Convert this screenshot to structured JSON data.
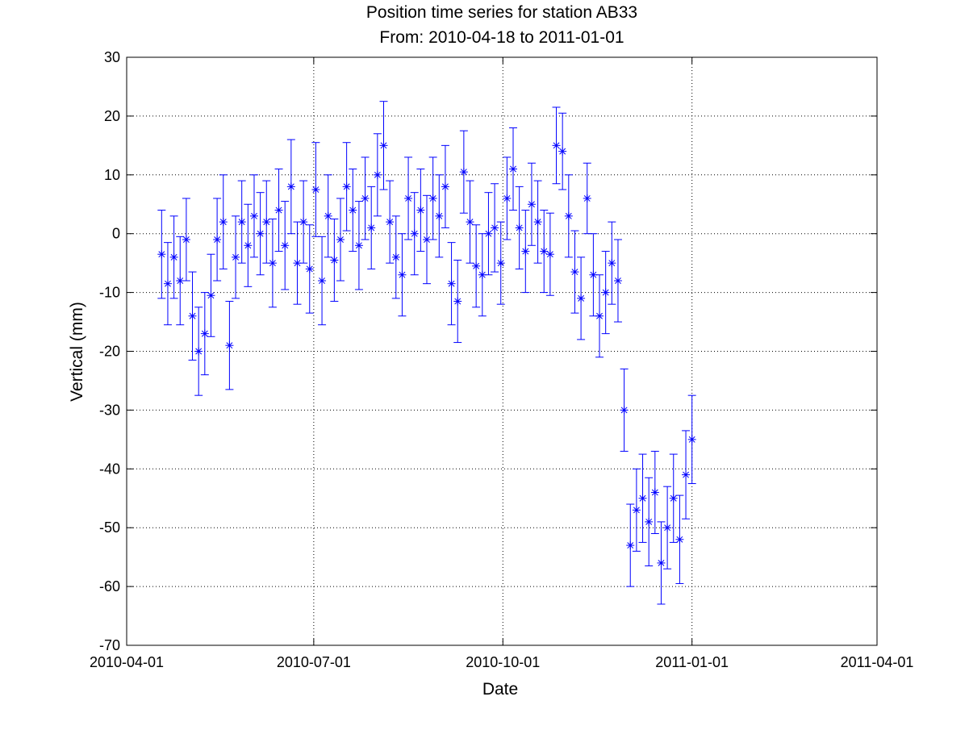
{
  "chart_data": {
    "type": "errorbar",
    "title": "Position time series for station AB33",
    "subtitle": "From: 2010-04-18 to 2011-01-01",
    "x_label": "Date",
    "y_label": "Vertical (mm)",
    "x": [
      "2010-04-18",
      "2010-04-21",
      "2010-04-24",
      "2010-04-27",
      "2010-04-30",
      "2010-05-03",
      "2010-05-06",
      "2010-05-09",
      "2010-05-12",
      "2010-05-15",
      "2010-05-18",
      "2010-05-21",
      "2010-05-24",
      "2010-05-27",
      "2010-05-30",
      "2010-06-02",
      "2010-06-05",
      "2010-06-08",
      "2010-06-11",
      "2010-06-14",
      "2010-06-17",
      "2010-06-20",
      "2010-06-23",
      "2010-06-26",
      "2010-06-29",
      "2010-07-02",
      "2010-07-05",
      "2010-07-08",
      "2010-07-11",
      "2010-07-14",
      "2010-07-17",
      "2010-07-20",
      "2010-07-23",
      "2010-07-26",
      "2010-07-29",
      "2010-08-01",
      "2010-08-04",
      "2010-08-07",
      "2010-08-10",
      "2010-08-13",
      "2010-08-16",
      "2010-08-19",
      "2010-08-22",
      "2010-08-25",
      "2010-08-28",
      "2010-08-31",
      "2010-09-03",
      "2010-09-06",
      "2010-09-09",
      "2010-09-12",
      "2010-09-15",
      "2010-09-18",
      "2010-09-21",
      "2010-09-24",
      "2010-09-27",
      "2010-09-30",
      "2010-10-03",
      "2010-10-06",
      "2010-10-09",
      "2010-10-12",
      "2010-10-15",
      "2010-10-18",
      "2010-10-21",
      "2010-10-24",
      "2010-10-27",
      "2010-10-30",
      "2010-11-02",
      "2010-11-05",
      "2010-11-08",
      "2010-11-11",
      "2010-11-14",
      "2010-11-17",
      "2010-11-20",
      "2010-11-23",
      "2010-11-26",
      "2010-11-29",
      "2010-12-02",
      "2010-12-05",
      "2010-12-08",
      "2010-12-11",
      "2010-12-14",
      "2010-12-17",
      "2010-12-20",
      "2010-12-23",
      "2010-12-26",
      "2010-12-29",
      "2011-01-01"
    ],
    "series": [
      {
        "color": "#0000ff",
        "values": [
          -3.5,
          -8.5,
          -4,
          -8,
          -1,
          -14,
          -20,
          -17,
          -10.5,
          -1,
          2,
          -19,
          -4,
          2,
          -2,
          3,
          0,
          2,
          -5,
          4,
          -2,
          8,
          -5,
          2,
          -6,
          7.5,
          -8,
          3,
          -4.5,
          -1,
          8,
          4,
          -2,
          6,
          1,
          10,
          15,
          2,
          -4,
          -7,
          6,
          0,
          4,
          -1,
          6,
          3,
          8,
          -8.5,
          -11.5,
          10.5,
          2,
          -5.5,
          -7,
          0,
          1,
          -5,
          6,
          11,
          1,
          -3,
          5,
          2,
          -3,
          -3.5,
          15,
          14,
          3,
          -6.5,
          -11,
          6,
          -7,
          -14,
          -10,
          -5,
          -8,
          -30,
          -53,
          -47,
          -45,
          -49,
          -44,
          -56,
          -50,
          -45,
          -52,
          -41,
          -35
        ],
        "errors": [
          7.5,
          7,
          7,
          7.5,
          7,
          7.5,
          7.5,
          7,
          7,
          7,
          8,
          7.5,
          7,
          7,
          7,
          7,
          7,
          7,
          7.5,
          7,
          7.5,
          8,
          7,
          7,
          7.5,
          8,
          7.5,
          7,
          7,
          7,
          7.5,
          7,
          7.5,
          7,
          7,
          7,
          7.5,
          7,
          7,
          7,
          7,
          7,
          7,
          7.5,
          7,
          7,
          7,
          7,
          7,
          7,
          7,
          7,
          7,
          7,
          7.5,
          7,
          7,
          7,
          7,
          7,
          7,
          7,
          7,
          7,
          6.5,
          6.5,
          7,
          7,
          7,
          6,
          7,
          7,
          7,
          7,
          7,
          7,
          7,
          7,
          7.5,
          7.5,
          7,
          7,
          7,
          7.5,
          7.5,
          7.5,
          7.5
        ]
      }
    ],
    "xlim": [
      "2010-04-01",
      "2011-04-01"
    ],
    "xticks": [
      "2010-04-01",
      "2010-07-01",
      "2010-10-01",
      "2011-01-01",
      "2011-04-01"
    ],
    "ylim": [
      -70,
      30
    ],
    "yticks": [
      -70,
      -60,
      -50,
      -40,
      -30,
      -20,
      -10,
      0,
      10,
      20,
      30
    ],
    "grid": true
  }
}
